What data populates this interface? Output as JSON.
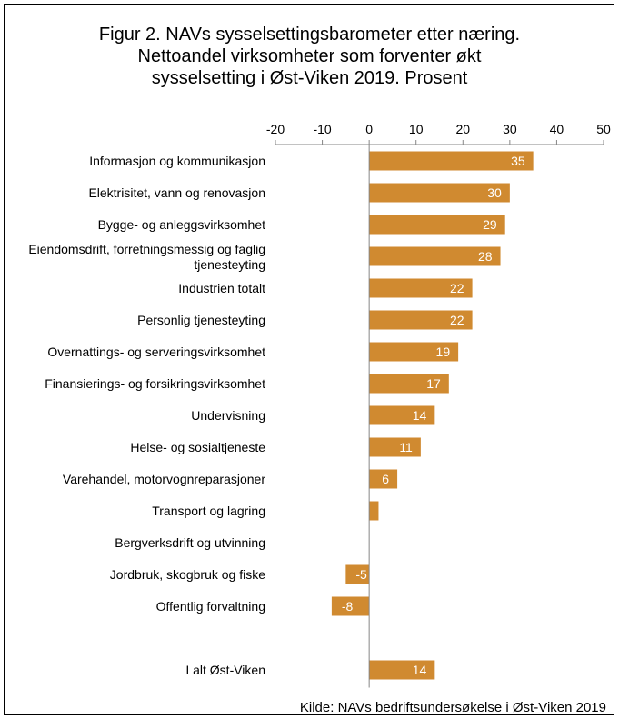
{
  "title_lines": [
    "Figur 2. NAVs sysselsettingsbarometer etter næring.",
    "Nettoandel virksomheter som forventer økt",
    "sysselsetting i Øst-Viken 2019. Prosent"
  ],
  "source": "Kilde: NAVs bedriftsundersøkelse i Øst-Viken 2019",
  "colors": {
    "bar": "#D08A30",
    "axis": "#868686",
    "label_text": "#FFFFFF"
  },
  "chart_data": {
    "type": "bar",
    "orientation": "horizontal",
    "title": "Figur 2. NAVs sysselsettingsbarometer etter næring. Nettoandel virksomheter som forventer økt sysselsetting i Øst-Viken 2019. Prosent",
    "xlim": [
      -20,
      50
    ],
    "x_ticks": [
      -20,
      -10,
      0,
      10,
      20,
      30,
      40,
      50
    ],
    "x_axis_position": "top",
    "grid": false,
    "categories": [
      {
        "label": [
          "Informasjon og kommunikasjon"
        ],
        "value": 35,
        "data_label": "35"
      },
      {
        "label": [
          "Elektrisitet, vann og renovasjon"
        ],
        "value": 30,
        "data_label": "30"
      },
      {
        "label": [
          "Bygge- og anleggsvirksomhet"
        ],
        "value": 29,
        "data_label": "29"
      },
      {
        "label": [
          "Eiendomsdrift, forretningsmessig og faglig",
          "tjenesteyting"
        ],
        "value": 28,
        "data_label": "28"
      },
      {
        "label": [
          "Industrien totalt"
        ],
        "value": 22,
        "data_label": "22"
      },
      {
        "label": [
          "Personlig tjenesteyting"
        ],
        "value": 22,
        "data_label": "22"
      },
      {
        "label": [
          "Overnattings- og serveringsvirksomhet"
        ],
        "value": 19,
        "data_label": "19"
      },
      {
        "label": [
          "Finansierings- og forsikringsvirksomhet"
        ],
        "value": 17,
        "data_label": "17"
      },
      {
        "label": [
          "Undervisning"
        ],
        "value": 14,
        "data_label": "14"
      },
      {
        "label": [
          "Helse- og sosialtjeneste"
        ],
        "value": 11,
        "data_label": "11"
      },
      {
        "label": [
          "Varehandel, motorvognreparasjoner"
        ],
        "value": 6,
        "data_label": "6"
      },
      {
        "label": [
          "Transport og lagring"
        ],
        "value": 2,
        "data_label": ""
      },
      {
        "label": [
          "Bergverksdrift og utvinning"
        ],
        "value": 0,
        "data_label": ""
      },
      {
        "label": [
          "Jordbruk, skogbruk og fiske"
        ],
        "value": -5,
        "data_label": "-5"
      },
      {
        "label": [
          "Offentlig forvaltning"
        ],
        "value": -8,
        "data_label": "-8"
      },
      {
        "label": [
          ""
        ],
        "value": null,
        "data_label": ""
      },
      {
        "label": [
          "I alt Øst-Viken"
        ],
        "value": 14,
        "data_label": "14"
      }
    ]
  }
}
